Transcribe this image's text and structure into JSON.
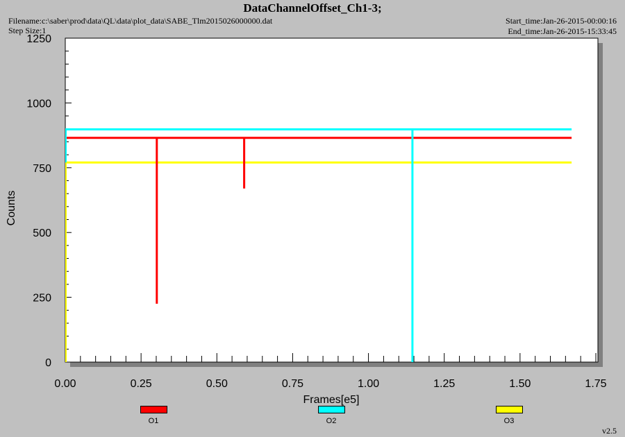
{
  "header": {
    "title": "DataChannelOffset_Ch1-3;",
    "filename": "Filename:c:\\saber\\prod\\data\\QL\\data\\plot_data\\SABE_Tlm2015026000000.dat",
    "step_size": "Step Size:1",
    "start_time": "Start_time:Jan-26-2015-00:00:16",
    "end_time": "End_time:Jan-26-2015-15:33:45",
    "version": "v2.5"
  },
  "chart_data": {
    "type": "line",
    "title": "DataChannelOffset_Ch1-3;",
    "xlabel": "Frames[e5]",
    "ylabel": "Counts",
    "xlim": [
      0,
      1.75
    ],
    "ylim": [
      0,
      1250
    ],
    "xticks": [
      "0.00",
      "0.25",
      "0.50",
      "0.75",
      "1.00",
      "1.25",
      "1.50",
      "1.75"
    ],
    "yticks": [
      "0",
      "250",
      "500",
      "750",
      "1000",
      "1250"
    ],
    "grid": false,
    "legend_placement": "bottom",
    "series": [
      {
        "name": "O1",
        "color": "#ff0000",
        "x": [
          0,
          0.302,
          0.302,
          0.302,
          0.59,
          0.59,
          0.59,
          1.67
        ],
        "y": [
          865,
          865,
          225,
          865,
          865,
          670,
          865,
          865
        ]
      },
      {
        "name": "O2",
        "color": "#00ffff",
        "x": [
          0,
          1.145,
          1.145,
          1.145,
          1.67
        ],
        "y": [
          898,
          898,
          0,
          898,
          898
        ]
      },
      {
        "name": "O3",
        "color": "#ffff00",
        "x": [
          0,
          1.67
        ],
        "y": [
          770,
          770
        ]
      }
    ]
  }
}
